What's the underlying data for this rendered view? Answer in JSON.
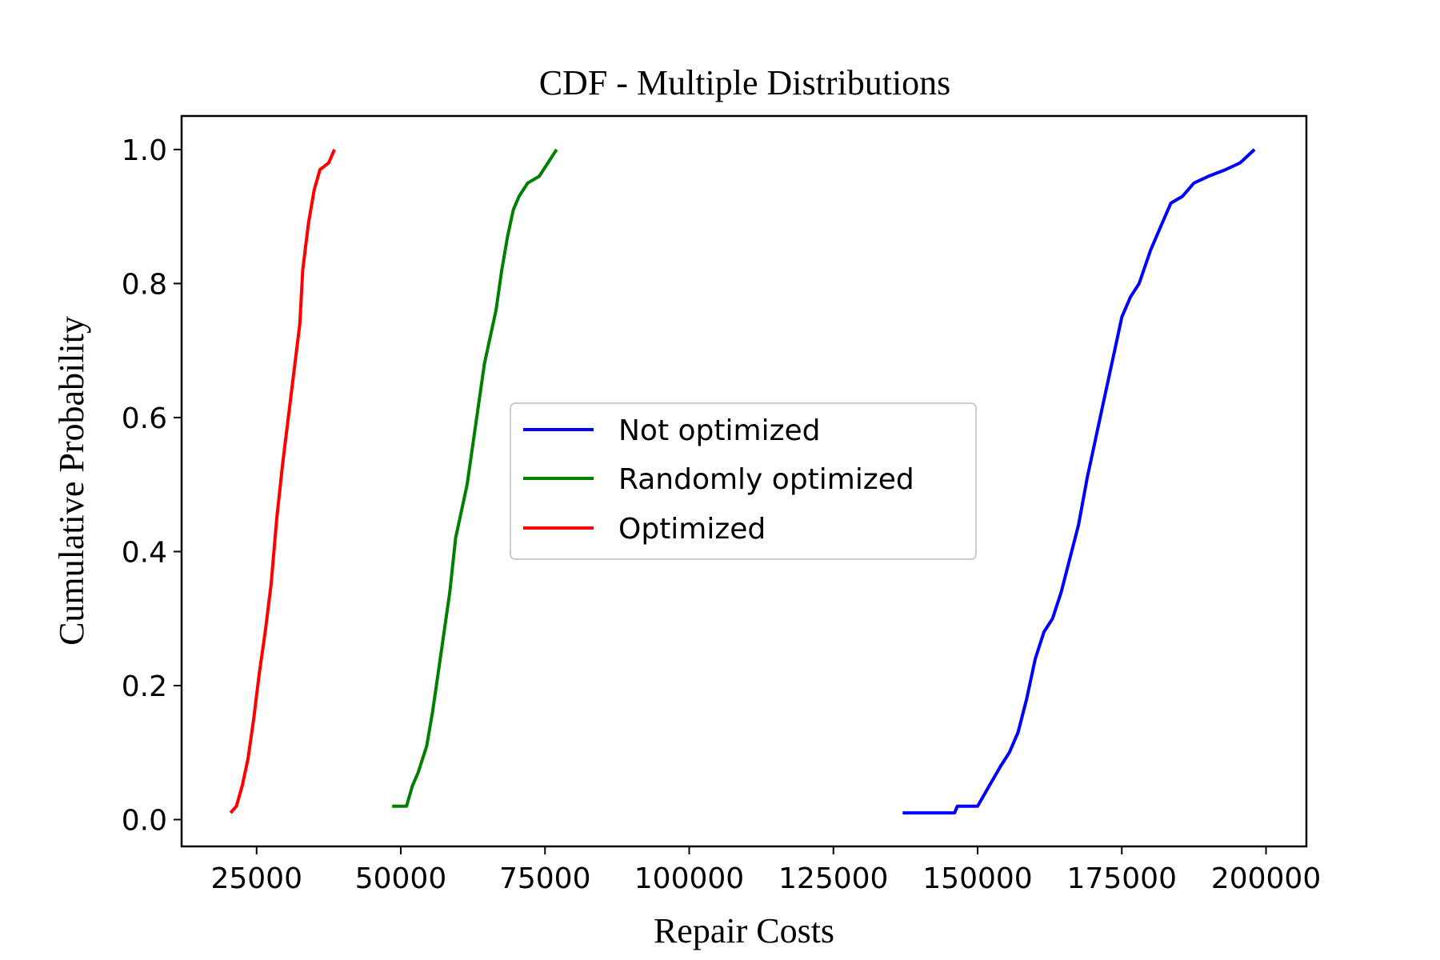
{
  "chart_data": {
    "type": "line",
    "title": "CDF - Multiple Distributions",
    "xlabel": "Repair Costs",
    "ylabel": "Cumulative Probability",
    "xlim": [
      12000,
      207000
    ],
    "ylim": [
      -0.04,
      1.05
    ],
    "xticks": [
      25000,
      50000,
      75000,
      100000,
      125000,
      150000,
      175000,
      200000
    ],
    "xtick_labels": [
      "25000",
      "50000",
      "75000",
      "100000",
      "125000",
      "150000",
      "175000",
      "200000"
    ],
    "yticks": [
      0.0,
      0.2,
      0.4,
      0.6,
      0.8,
      1.0
    ],
    "ytick_labels": [
      "0.0",
      "0.2",
      "0.4",
      "0.6",
      "0.8",
      "1.0"
    ],
    "grid": false,
    "legend_position": "center",
    "series": [
      {
        "name": "Not optimized",
        "color": "#0000ff",
        "x": [
          137000,
          146000,
          146500,
          150000,
          152000,
          154000,
          155500,
          157000,
          158500,
          160000,
          161500,
          163000,
          164500,
          166000,
          167500,
          169000,
          170500,
          172000,
          173500,
          175000,
          176500,
          178000,
          180000,
          182000,
          183500,
          185500,
          187500,
          190000,
          193000,
          195500,
          198000
        ],
        "y": [
          0.01,
          0.01,
          0.02,
          0.02,
          0.05,
          0.08,
          0.1,
          0.13,
          0.18,
          0.24,
          0.28,
          0.3,
          0.34,
          0.39,
          0.44,
          0.51,
          0.57,
          0.63,
          0.69,
          0.75,
          0.78,
          0.8,
          0.85,
          0.89,
          0.92,
          0.93,
          0.95,
          0.96,
          0.97,
          0.98,
          1.0
        ]
      },
      {
        "name": "Randomly optimized",
        "color": "#008000",
        "x": [
          48500,
          51000,
          52000,
          53000,
          54500,
          55500,
          56500,
          57500,
          58500,
          59500,
          60500,
          61500,
          62500,
          63500,
          64500,
          65500,
          66500,
          67500,
          68500,
          69500,
          70500,
          72000,
          74000,
          75500,
          77000
        ],
        "y": [
          0.02,
          0.02,
          0.05,
          0.07,
          0.11,
          0.16,
          0.22,
          0.28,
          0.34,
          0.42,
          0.46,
          0.5,
          0.56,
          0.62,
          0.68,
          0.72,
          0.76,
          0.82,
          0.87,
          0.91,
          0.93,
          0.95,
          0.96,
          0.98,
          1.0
        ]
      },
      {
        "name": "Optimized",
        "color": "#ff0000",
        "x": [
          20500,
          21500,
          22500,
          23500,
          24500,
          25500,
          26500,
          27500,
          28500,
          29500,
          30500,
          31500,
          32500,
          33000,
          34000,
          35000,
          36000,
          37500,
          38500
        ],
        "y": [
          0.01,
          0.02,
          0.05,
          0.09,
          0.15,
          0.22,
          0.28,
          0.35,
          0.45,
          0.53,
          0.6,
          0.67,
          0.74,
          0.82,
          0.89,
          0.94,
          0.97,
          0.98,
          1.0
        ]
      }
    ]
  }
}
